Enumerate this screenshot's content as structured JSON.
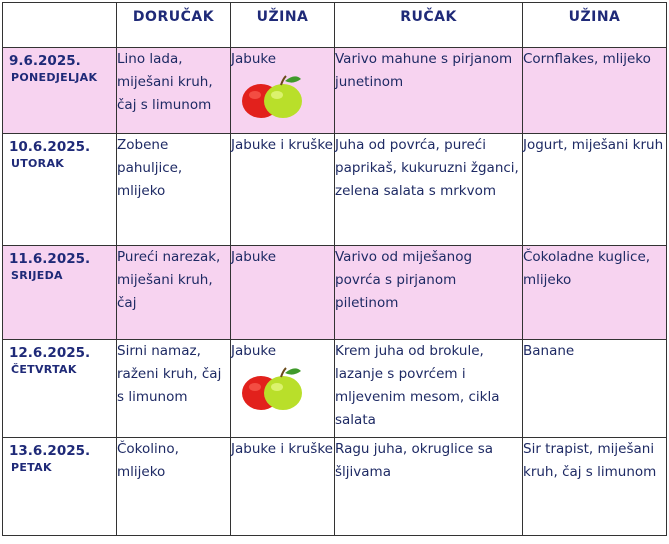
{
  "header": [
    "",
    "DORUČAK",
    "UŽINA",
    "RUČAK",
    "UŽINA"
  ],
  "rows": [
    {
      "date": "9.6.2025.",
      "day": "PONEDJELJAK",
      "breakfast": "Lino lada, miješani kruh, čaj s limunom",
      "snack1": "Jabuke",
      "snack1_icon": "apples-icon",
      "lunch": "Varivo mahune s pirjanom junetinom",
      "snack2": "Cornflakes, mlijeko"
    },
    {
      "date": "10.6.2025.",
      "day": "UTORAK",
      "breakfast": "Zobene pahuljice, mlijeko",
      "snack1": "Jabuke i kruške",
      "lunch": "Juha od povrća, pureći paprikaš, kukuruzni žganci, zelena salata s mrkvom",
      "snack2": "Jogurt, miješani kruh"
    },
    {
      "date": "11.6.2025.",
      "day": "SRIJEDA",
      "breakfast": "Pureći narezak, miješani kruh, čaj",
      "snack1": "Jabuke",
      "lunch": "Varivo od miješanog povrća s pirjanom piletinom",
      "snack2": "Čokoladne kuglice, mlijeko"
    },
    {
      "date": "12.6.2025.",
      "day": "ČETVRTAK",
      "breakfast": "Sirni namaz, raženi kruh, čaj s limunom",
      "snack1": "Jabuke",
      "snack1_icon": "apples-icon",
      "lunch": "Krem juha od brokule, lazanje s povrćem i mljevenim mesom, cikla salata",
      "snack2": "Banane"
    },
    {
      "date": "13.6.2025.",
      "day": "PETAK",
      "breakfast": "Čokolino, mlijeko",
      "snack1": "Jabuke i kruške",
      "lunch": "Ragu juha, okruglice sa šljivama",
      "snack2": "Sir trapist, miješani kruh, čaj s limunom"
    }
  ],
  "colors": {
    "pink_row": "#f7d3f0",
    "text": "#1e2a64",
    "header_text": "#1f2a78",
    "border": "#333333"
  }
}
